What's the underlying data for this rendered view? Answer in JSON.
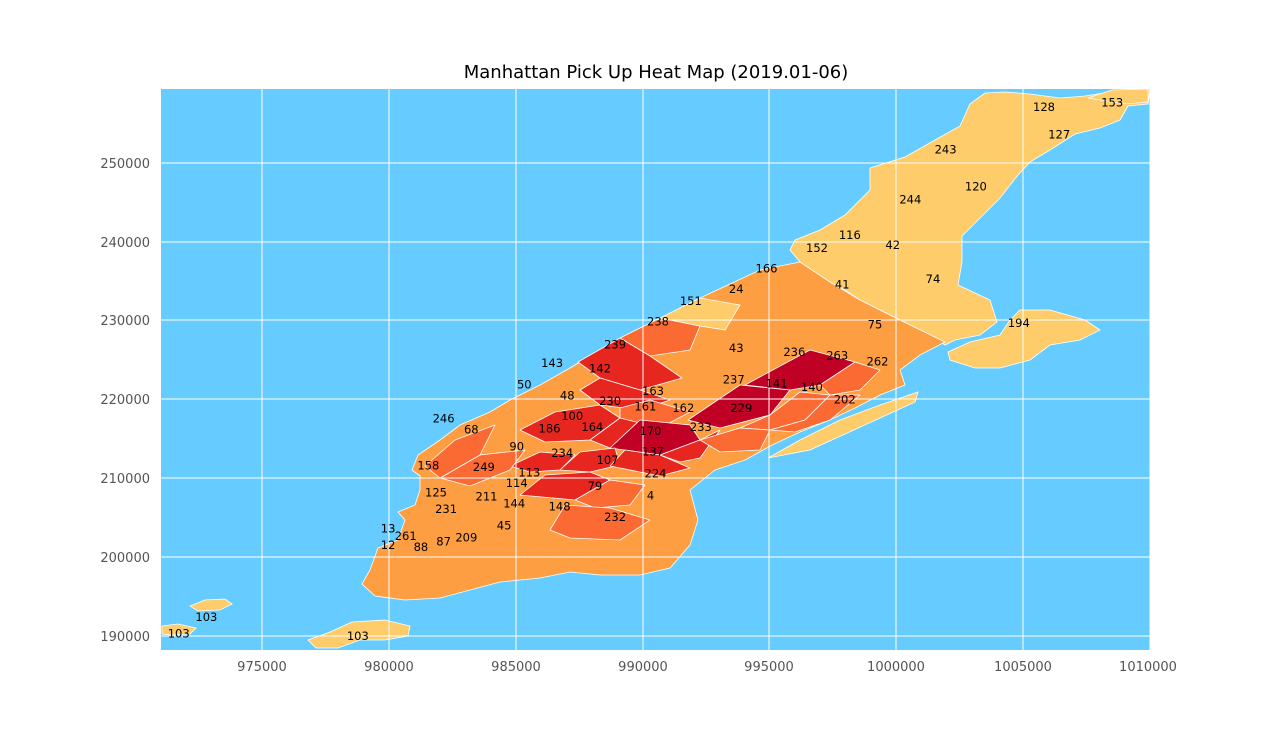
{
  "title": "Manhattan Pick Up Heat Map (2019.01-06)",
  "colors": {
    "water": "#66CCFF",
    "grid": "#FFFFFF",
    "tick_text": "#555555",
    "light": "#FECC6A",
    "medium": "#FD9E43",
    "orange": "#FB6A33",
    "red": "#E7261F",
    "dark_red": "#C10025"
  },
  "chart_data": {
    "type": "heatmap",
    "title": "Manhattan Pick Up Heat Map (2019.01-06)",
    "xlabel": "",
    "ylabel": "",
    "xlim": [
      971000,
      1010200
    ],
    "ylim": [
      188100,
      259300
    ],
    "xticks": [
      "975000",
      "980000",
      "985000",
      "990000",
      "995000",
      "1000000",
      "1005000",
      "1010000"
    ],
    "yticks": [
      "190000",
      "200000",
      "210000",
      "220000",
      "230000",
      "240000",
      "250000"
    ],
    "grid": true,
    "legend": "none",
    "zones": [
      {
        "id": "153",
        "x": 1008700,
        "y": 257600,
        "level": "light"
      },
      {
        "id": "128",
        "x": 1006000,
        "y": 257000,
        "level": "light"
      },
      {
        "id": "127",
        "x": 1006600,
        "y": 253500,
        "level": "light"
      },
      {
        "id": "243",
        "x": 1002100,
        "y": 251600,
        "level": "light"
      },
      {
        "id": "120",
        "x": 1003300,
        "y": 246900,
        "level": "light"
      },
      {
        "id": "244",
        "x": 1000700,
        "y": 245300,
        "level": "light"
      },
      {
        "id": "116",
        "x": 998300,
        "y": 240800,
        "level": "light"
      },
      {
        "id": "42",
        "x": 1000000,
        "y": 239500,
        "level": "light"
      },
      {
        "id": "152",
        "x": 997000,
        "y": 239100,
        "level": "light"
      },
      {
        "id": "166",
        "x": 995000,
        "y": 236500,
        "level": "light"
      },
      {
        "id": "74",
        "x": 1001600,
        "y": 235200,
        "level": "light"
      },
      {
        "id": "41",
        "x": 998000,
        "y": 234500,
        "level": "light"
      },
      {
        "id": "24",
        "x": 993800,
        "y": 233900,
        "level": "light"
      },
      {
        "id": "151",
        "x": 992000,
        "y": 232400,
        "level": "light"
      },
      {
        "id": "194",
        "x": 1005000,
        "y": 229600,
        "level": "light"
      },
      {
        "id": "238",
        "x": 990700,
        "y": 229800,
        "level": "orange"
      },
      {
        "id": "75",
        "x": 999300,
        "y": 229400,
        "level": "medium"
      },
      {
        "id": "239",
        "x": 989000,
        "y": 226900,
        "level": "red"
      },
      {
        "id": "43",
        "x": 993800,
        "y": 226400,
        "level": "medium"
      },
      {
        "id": "236",
        "x": 996100,
        "y": 225900,
        "level": "dark_red"
      },
      {
        "id": "263",
        "x": 997800,
        "y": 225500,
        "level": "orange"
      },
      {
        "id": "262",
        "x": 999400,
        "y": 224700,
        "level": "medium"
      },
      {
        "id": "143",
        "x": 986500,
        "y": 224500,
        "level": "medium"
      },
      {
        "id": "142",
        "x": 988400,
        "y": 223800,
        "level": "red"
      },
      {
        "id": "237",
        "x": 993700,
        "y": 222400,
        "level": "dark_red"
      },
      {
        "id": "141",
        "x": 995400,
        "y": 221900,
        "level": "orange"
      },
      {
        "id": "50",
        "x": 985400,
        "y": 221800,
        "level": "medium"
      },
      {
        "id": "140",
        "x": 996800,
        "y": 221500,
        "level": "orange"
      },
      {
        "id": "163",
        "x": 990500,
        "y": 221000,
        "level": "orange"
      },
      {
        "id": "48",
        "x": 987100,
        "y": 220400,
        "level": "red"
      },
      {
        "id": "202",
        "x": 998100,
        "y": 219900,
        "level": "light"
      },
      {
        "id": "230",
        "x": 988800,
        "y": 219700,
        "level": "red"
      },
      {
        "id": "161",
        "x": 990200,
        "y": 219000,
        "level": "dark_red"
      },
      {
        "id": "162",
        "x": 991700,
        "y": 218800,
        "level": "red"
      },
      {
        "id": "229",
        "x": 994000,
        "y": 218800,
        "level": "orange"
      },
      {
        "id": "246",
        "x": 982200,
        "y": 217500,
        "level": "orange"
      },
      {
        "id": "100",
        "x": 987300,
        "y": 217800,
        "level": "medium"
      },
      {
        "id": "68",
        "x": 983300,
        "y": 216100,
        "level": "orange"
      },
      {
        "id": "186",
        "x": 986400,
        "y": 216200,
        "level": "red"
      },
      {
        "id": "164",
        "x": 988100,
        "y": 216400,
        "level": "red"
      },
      {
        "id": "233",
        "x": 992400,
        "y": 216400,
        "level": "medium"
      },
      {
        "id": "170",
        "x": 990400,
        "y": 215900,
        "level": "red"
      },
      {
        "id": "90",
        "x": 985100,
        "y": 213900,
        "level": "medium"
      },
      {
        "id": "234",
        "x": 986900,
        "y": 213100,
        "level": "red"
      },
      {
        "id": "137",
        "x": 990500,
        "y": 213300,
        "level": "medium"
      },
      {
        "id": "107",
        "x": 988700,
        "y": 212200,
        "level": "orange"
      },
      {
        "id": "158",
        "x": 981600,
        "y": 211500,
        "level": "medium"
      },
      {
        "id": "249",
        "x": 983800,
        "y": 211300,
        "level": "medium"
      },
      {
        "id": "113",
        "x": 985600,
        "y": 210600,
        "level": "medium"
      },
      {
        "id": "224",
        "x": 990600,
        "y": 210500,
        "level": "light"
      },
      {
        "id": "114",
        "x": 985100,
        "y": 209300,
        "level": "light"
      },
      {
        "id": "79",
        "x": 988200,
        "y": 208900,
        "level": "orange"
      },
      {
        "id": "125",
        "x": 981900,
        "y": 208100,
        "level": "light"
      },
      {
        "id": "211",
        "x": 983900,
        "y": 207600,
        "level": "light"
      },
      {
        "id": "4",
        "x": 990400,
        "y": 207700,
        "level": "light"
      },
      {
        "id": "144",
        "x": 985000,
        "y": 206700,
        "level": "light"
      },
      {
        "id": "231",
        "x": 982300,
        "y": 206000,
        "level": "medium"
      },
      {
        "id": "148",
        "x": 986800,
        "y": 206300,
        "level": "medium"
      },
      {
        "id": "232",
        "x": 989000,
        "y": 205000,
        "level": "light"
      },
      {
        "id": "45",
        "x": 984600,
        "y": 203900,
        "level": "light"
      },
      {
        "id": "13",
        "x": 980000,
        "y": 203500,
        "level": "medium"
      },
      {
        "id": "261",
        "x": 980700,
        "y": 202600,
        "level": "light"
      },
      {
        "id": "209",
        "x": 983100,
        "y": 202400,
        "level": "light"
      },
      {
        "id": "87",
        "x": 982200,
        "y": 201900,
        "level": "light"
      },
      {
        "id": "12",
        "x": 980000,
        "y": 201400,
        "level": "light"
      },
      {
        "id": "88",
        "x": 981300,
        "y": 201200,
        "level": "light"
      },
      {
        "id": "103",
        "x": 972800,
        "y": 192300,
        "level": "light"
      },
      {
        "id": "103",
        "x": 971700,
        "y": 190200,
        "level": "light"
      },
      {
        "id": "103",
        "x": 978800,
        "y": 189900,
        "level": "light"
      }
    ]
  }
}
